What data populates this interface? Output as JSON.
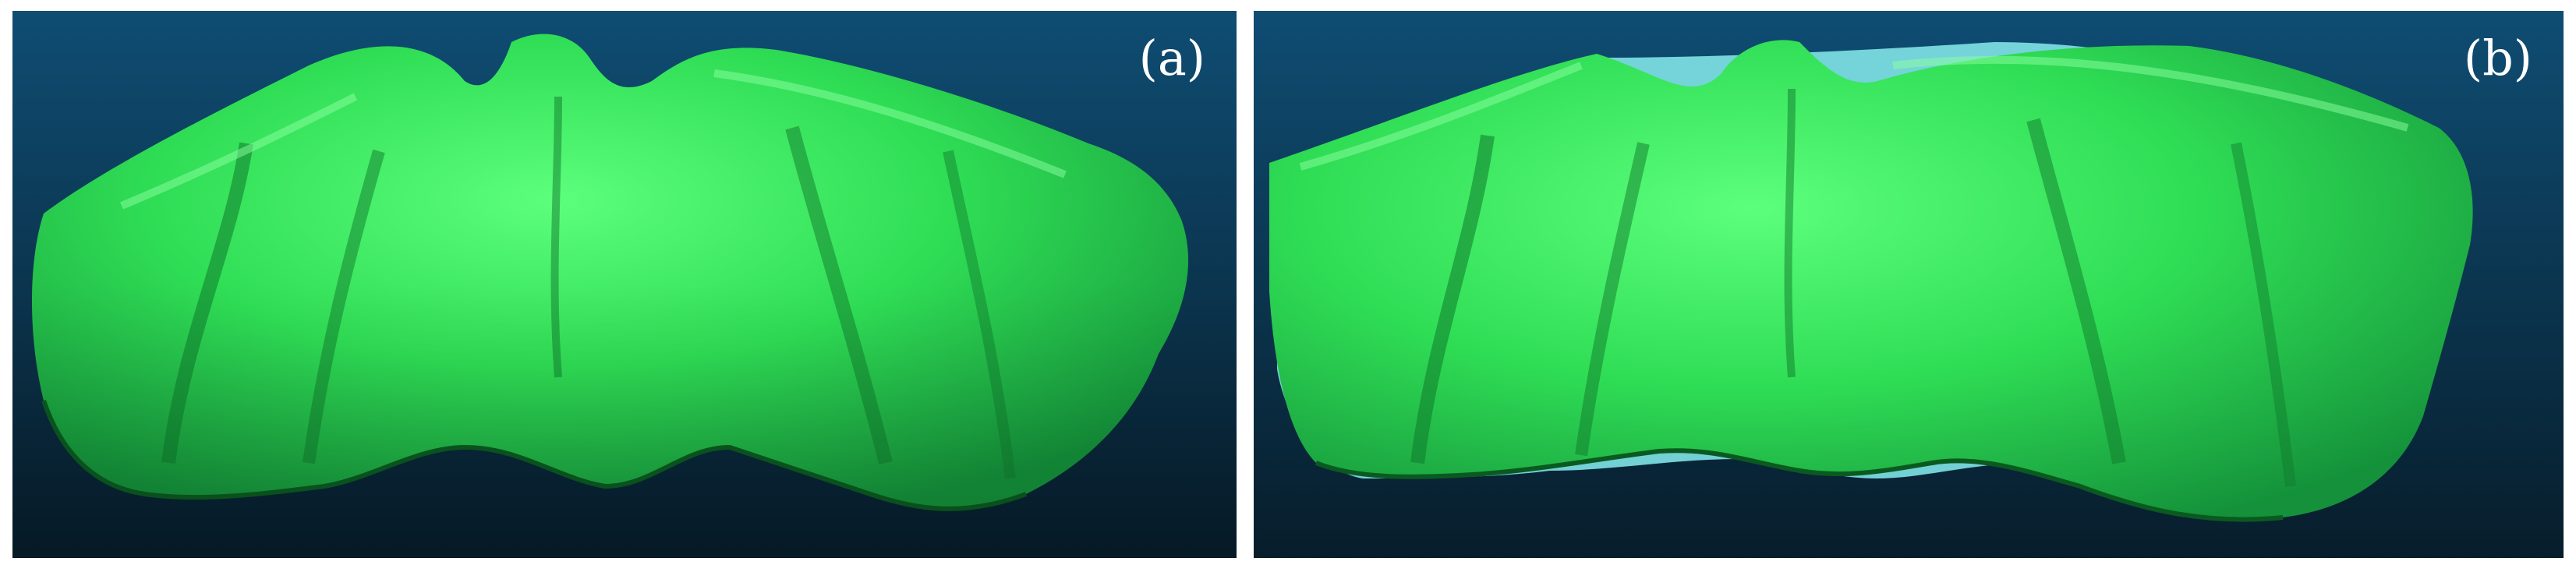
{
  "panels": [
    {
      "label": "(a)",
      "background_top": "#0f4d73",
      "background_bottom": "#071d2b",
      "mesh_color": "#22c948",
      "mesh_highlight": "#5cff7c"
    },
    {
      "label": "(b)",
      "background_top": "#0f4d73",
      "background_bottom": "#071d2b",
      "mesh_color": "#22c948",
      "mesh_highlight": "#5cff7c",
      "overlay_color": "#7fe3e6"
    }
  ]
}
